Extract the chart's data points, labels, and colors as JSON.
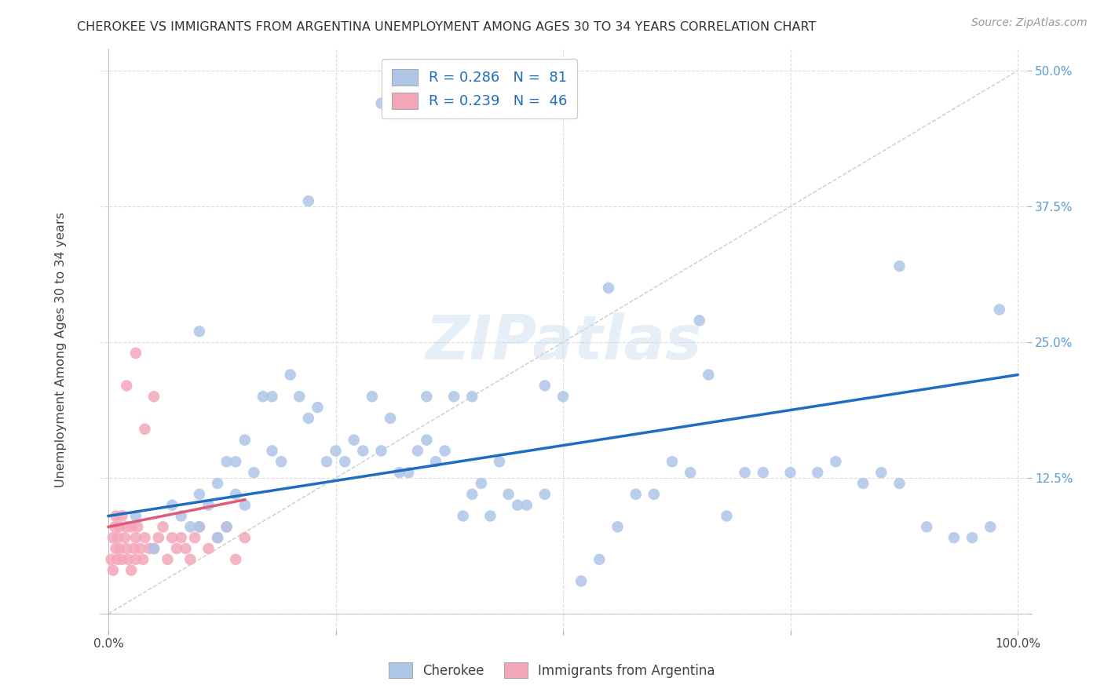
{
  "title": "CHEROKEE VS IMMIGRANTS FROM ARGENTINA UNEMPLOYMENT AMONG AGES 30 TO 34 YEARS CORRELATION CHART",
  "source": "Source: ZipAtlas.com",
  "ylabel_label": "Unemployment Among Ages 30 to 34 years",
  "cherokee_color": "#aec6e8",
  "argentina_color": "#f4a7b9",
  "cherokee_line_color": "#1f6dbf",
  "argentina_line_color": "#e05a7a",
  "diagonal_color": "#cccccc",
  "watermark": "ZIPatlas",
  "cherokee_R": 0.286,
  "cherokee_N": 81,
  "argentina_R": 0.239,
  "argentina_N": 46,
  "xlim": [
    0,
    100
  ],
  "ylim": [
    0,
    50
  ],
  "xticks": [
    0,
    25,
    50,
    75,
    100
  ],
  "xticklabels": [
    "0.0%",
    "",
    "",
    "",
    "100.0%"
  ],
  "yticks": [
    0,
    12.5,
    25,
    37.5,
    50
  ],
  "yticklabels": [
    "",
    "12.5%",
    "25.0%",
    "37.5%",
    "50.0%"
  ],
  "cherokee_x": [
    3,
    5,
    7,
    8,
    9,
    10,
    10,
    11,
    12,
    12,
    13,
    13,
    14,
    14,
    15,
    15,
    16,
    17,
    18,
    18,
    19,
    20,
    21,
    22,
    23,
    24,
    25,
    26,
    27,
    28,
    29,
    30,
    31,
    32,
    33,
    34,
    35,
    36,
    37,
    38,
    39,
    40,
    41,
    42,
    43,
    44,
    45,
    46,
    48,
    50,
    52,
    54,
    56,
    58,
    60,
    62,
    64,
    66,
    68,
    70,
    72,
    75,
    78,
    80,
    83,
    85,
    87,
    90,
    93,
    95,
    97,
    98,
    30,
    22,
    87,
    65,
    55,
    48,
    40,
    35,
    10
  ],
  "cherokee_y": [
    9,
    6,
    10,
    9,
    8,
    11,
    8,
    10,
    12,
    7,
    8,
    14,
    11,
    14,
    10,
    16,
    13,
    20,
    15,
    20,
    14,
    22,
    20,
    18,
    19,
    14,
    15,
    14,
    16,
    15,
    20,
    15,
    18,
    13,
    13,
    15,
    20,
    14,
    15,
    20,
    9,
    11,
    12,
    9,
    14,
    11,
    10,
    10,
    11,
    20,
    3,
    5,
    8,
    11,
    11,
    14,
    13,
    22,
    9,
    13,
    13,
    13,
    13,
    14,
    12,
    13,
    12,
    8,
    7,
    7,
    8,
    28,
    47,
    38,
    32,
    27,
    30,
    21,
    20,
    16,
    26
  ],
  "argentina_x": [
    0.3,
    0.5,
    0.5,
    0.7,
    0.8,
    0.8,
    1.0,
    1.0,
    1.2,
    1.2,
    1.5,
    1.5,
    1.8,
    2.0,
    2.0,
    2.2,
    2.5,
    2.5,
    2.8,
    3.0,
    3.0,
    3.2,
    3.5,
    3.8,
    4.0,
    4.5,
    5.0,
    5.5,
    6.0,
    6.5,
    7.0,
    7.5,
    8.0,
    8.5,
    9.0,
    9.5,
    10.0,
    11.0,
    12.0,
    13.0,
    14.0,
    15.0,
    2.0,
    3.0,
    4.0,
    5.0
  ],
  "argentina_y": [
    5,
    7,
    4,
    8,
    6,
    9,
    5,
    7,
    6,
    8,
    9,
    5,
    7,
    6,
    8,
    5,
    8,
    4,
    6,
    7,
    5,
    8,
    6,
    5,
    7,
    6,
    6,
    7,
    8,
    5,
    7,
    6,
    7,
    6,
    5,
    7,
    8,
    6,
    7,
    8,
    5,
    7,
    21,
    24,
    17,
    20
  ]
}
